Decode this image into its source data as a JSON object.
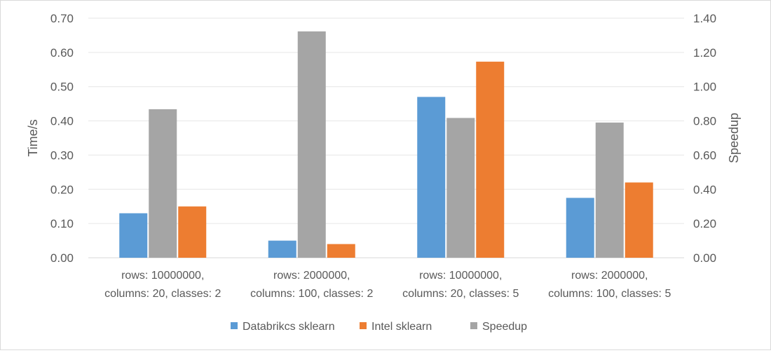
{
  "chart_data": {
    "type": "bar",
    "title": "",
    "categories": [
      [
        "rows: 10000000,",
        "columns: 20, classes: 2"
      ],
      [
        "rows: 2000000,",
        "columns: 100, classes: 2"
      ],
      [
        "rows: 10000000,",
        "columns: 20, classes: 5"
      ],
      [
        "rows: 2000000,",
        "columns: 100, classes: 5"
      ]
    ],
    "series": [
      {
        "name": "Databrikcs sklearn",
        "axis": "left",
        "color": "#5b9bd5",
        "values": [
          0.13,
          0.05,
          0.47,
          0.175
        ]
      },
      {
        "name": "Speedup",
        "axis": "right",
        "color": "#a5a5a5",
        "values": [
          0.868,
          1.323,
          0.817,
          0.79
        ]
      },
      {
        "name": "Intel sklearn",
        "axis": "right_group_left_units",
        "color": "#ed7d31",
        "values": [
          0.15,
          0.04,
          0.573,
          0.22
        ]
      }
    ],
    "legend_order": [
      "Databrikcs sklearn",
      "Intel sklearn",
      "Speedup"
    ],
    "ylabel": "Time/s",
    "y2label": "Speedup",
    "ylim": [
      0,
      0.7
    ],
    "y2lim": [
      0,
      1.4
    ],
    "yticks": [
      "0.00",
      "0.10",
      "0.20",
      "0.30",
      "0.40",
      "0.50",
      "0.60",
      "0.70"
    ],
    "y2ticks": [
      "0.00",
      "0.20",
      "0.40",
      "0.60",
      "0.80",
      "1.00",
      "1.20",
      "1.40"
    ],
    "grid": true,
    "legend_position": "bottom"
  }
}
